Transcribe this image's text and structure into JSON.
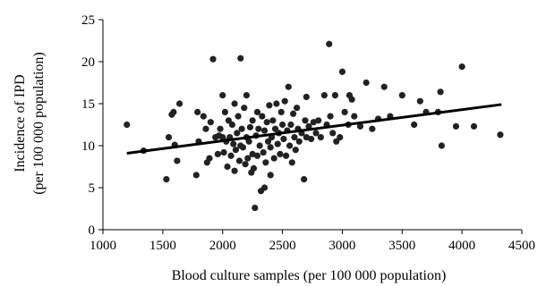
{
  "chart_data": {
    "type": "scatter",
    "title": "",
    "xlabel": "Blood culture samples (per 100 000 population)",
    "ylabel_lines": [
      "Incidence of IPD",
      "(per 100 000 population)"
    ],
    "xlim": [
      1000,
      4500
    ],
    "ylim": [
      0,
      25
    ],
    "xticks": [
      1000,
      1500,
      2000,
      2500,
      3000,
      3500,
      4000,
      4500
    ],
    "yticks": [
      0,
      5,
      10,
      15,
      20,
      25
    ],
    "grid": false,
    "legend": "none",
    "point_color": "#222222",
    "line_color": "#000000",
    "trendline": {
      "x": [
        1200,
        4330
      ],
      "y": [
        9.1,
        14.9
      ]
    },
    "points": [
      [
        1200,
        12.5
      ],
      [
        1340,
        9.4
      ],
      [
        1530,
        6.0
      ],
      [
        1550,
        11.0
      ],
      [
        1575,
        13.7
      ],
      [
        1590,
        14.0
      ],
      [
        1600,
        10.1
      ],
      [
        1620,
        8.2
      ],
      [
        1640,
        15.0
      ],
      [
        1780,
        6.5
      ],
      [
        1790,
        14.0
      ],
      [
        1800,
        10.5
      ],
      [
        1840,
        13.5
      ],
      [
        1860,
        12.0
      ],
      [
        1870,
        8.0
      ],
      [
        1890,
        8.5
      ],
      [
        1900,
        12.8
      ],
      [
        1920,
        20.3
      ],
      [
        1940,
        11.0
      ],
      [
        1960,
        9.0
      ],
      [
        1970,
        11.2
      ],
      [
        1980,
        12.0
      ],
      [
        2000,
        11.0
      ],
      [
        2000,
        16.0
      ],
      [
        2010,
        9.2
      ],
      [
        2020,
        14.0
      ],
      [
        2030,
        10.5
      ],
      [
        2040,
        7.5
      ],
      [
        2050,
        13.0
      ],
      [
        2060,
        11.0
      ],
      [
        2070,
        8.8
      ],
      [
        2080,
        12.5
      ],
      [
        2090,
        10.2
      ],
      [
        2100,
        15.0
      ],
      [
        2100,
        7.0
      ],
      [
        2110,
        9.5
      ],
      [
        2120,
        11.5
      ],
      [
        2130,
        13.5
      ],
      [
        2140,
        8.2
      ],
      [
        2150,
        10.0
      ],
      [
        2150,
        20.4
      ],
      [
        2160,
        12.0
      ],
      [
        2170,
        9.8
      ],
      [
        2180,
        14.5
      ],
      [
        2190,
        7.8
      ],
      [
        2200,
        11.0
      ],
      [
        2200,
        16.0
      ],
      [
        2210,
        8.5
      ],
      [
        2220,
        10.5
      ],
      [
        2230,
        12.2
      ],
      [
        2240,
        6.8
      ],
      [
        2250,
        9.0
      ],
      [
        2250,
        13.0
      ],
      [
        2260,
        7.3
      ],
      [
        2270,
        2.6
      ],
      [
        2280,
        11.2
      ],
      [
        2290,
        14.0
      ],
      [
        2290,
        8.8
      ],
      [
        2300,
        12.0
      ],
      [
        2310,
        10.0
      ],
      [
        2320,
        4.6
      ],
      [
        2330,
        13.5
      ],
      [
        2340,
        9.2
      ],
      [
        2350,
        5.0
      ],
      [
        2350,
        11.8
      ],
      [
        2360,
        8.0
      ],
      [
        2370,
        12.8
      ],
      [
        2380,
        10.5
      ],
      [
        2390,
        14.8
      ],
      [
        2400,
        6.5
      ],
      [
        2400,
        9.8
      ],
      [
        2410,
        11.0
      ],
      [
        2420,
        13.0
      ],
      [
        2430,
        8.5
      ],
      [
        2440,
        12.0
      ],
      [
        2450,
        15.0
      ],
      [
        2460,
        10.2
      ],
      [
        2470,
        11.5
      ],
      [
        2480,
        9.0
      ],
      [
        2490,
        14.0
      ],
      [
        2500,
        12.5
      ],
      [
        2510,
        10.8
      ],
      [
        2520,
        15.3
      ],
      [
        2530,
        8.8
      ],
      [
        2540,
        11.8
      ],
      [
        2550,
        17.0
      ],
      [
        2560,
        10.0
      ],
      [
        2570,
        12.5
      ],
      [
        2580,
        8.0
      ],
      [
        2590,
        13.8
      ],
      [
        2600,
        11.0
      ],
      [
        2610,
        9.5
      ],
      [
        2620,
        14.5
      ],
      [
        2630,
        12.0
      ],
      [
        2640,
        10.5
      ],
      [
        2660,
        11.5
      ],
      [
        2680,
        6.0
      ],
      [
        2690,
        13.0
      ],
      [
        2700,
        11.0
      ],
      [
        2700,
        15.8
      ],
      [
        2720,
        12.3
      ],
      [
        2740,
        10.8
      ],
      [
        2760,
        12.8
      ],
      [
        2780,
        11.5
      ],
      [
        2800,
        13.0
      ],
      [
        2820,
        11.0
      ],
      [
        2850,
        16.0
      ],
      [
        2870,
        12.5
      ],
      [
        2890,
        22.1
      ],
      [
        2900,
        13.5
      ],
      [
        2920,
        11.5
      ],
      [
        2940,
        16.0
      ],
      [
        2950,
        10.5
      ],
      [
        2980,
        11.0
      ],
      [
        3000,
        18.8
      ],
      [
        3020,
        14.0
      ],
      [
        3050,
        12.5
      ],
      [
        3060,
        16.0
      ],
      [
        3080,
        15.5
      ],
      [
        3100,
        13.5
      ],
      [
        3150,
        12.3
      ],
      [
        3200,
        17.5
      ],
      [
        3250,
        12.0
      ],
      [
        3300,
        13.2
      ],
      [
        3350,
        17.0
      ],
      [
        3400,
        13.5
      ],
      [
        3500,
        16.0
      ],
      [
        3600,
        12.5
      ],
      [
        3650,
        15.3
      ],
      [
        3700,
        14.0
      ],
      [
        3800,
        14.0
      ],
      [
        3820,
        16.4
      ],
      [
        3830,
        10.0
      ],
      [
        3950,
        12.3
      ],
      [
        4000,
        19.4
      ],
      [
        4100,
        12.3
      ],
      [
        4320,
        11.3
      ]
    ]
  }
}
